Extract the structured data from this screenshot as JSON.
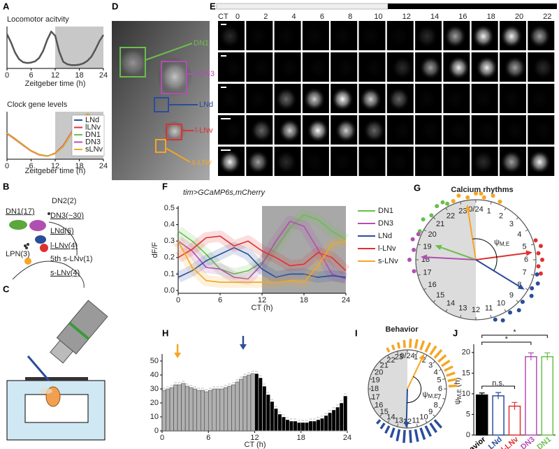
{
  "figure": {
    "panel_letters": [
      "A",
      "B",
      "C",
      "D",
      "E",
      "F",
      "G",
      "H",
      "I",
      "J"
    ],
    "B_labels": [
      "DN1(17)",
      "DN2(2)",
      "DN3(~30)",
      "LNd(6)",
      "LPN(3)",
      "l-LNv(4)",
      "5th s-LNv(1)",
      "s-LNv(4)"
    ],
    "D_labels": [
      "DN1",
      "DN3",
      "LNd",
      "l-LNv",
      "s-LNv"
    ],
    "E_ct_label": "CT",
    "E_ct": [
      0,
      2,
      4,
      6,
      8,
      10,
      12,
      14,
      16,
      18,
      20,
      22
    ]
  },
  "chart_data": [
    {
      "type": "line",
      "title": "Locomotor acitvity",
      "xlabel": "Zeitgeber time (h)",
      "x": [
        0,
        1,
        2,
        3,
        4,
        5,
        6,
        7,
        8,
        9,
        10,
        11,
        12,
        13,
        14,
        15,
        16,
        17,
        18,
        19,
        20,
        21,
        22,
        23,
        24
      ],
      "series": [
        {
          "color": "#555555",
          "values": [
            0.82,
            0.62,
            0.38,
            0.22,
            0.15,
            0.13,
            0.14,
            0.17,
            0.25,
            0.42,
            0.68,
            0.88,
            0.78,
            0.4,
            0.16,
            0.1,
            0.08,
            0.08,
            0.09,
            0.12,
            0.18,
            0.28,
            0.45,
            0.65,
            0.8
          ]
        }
      ],
      "xlim": [
        0,
        24
      ],
      "ylim": [
        0,
        1
      ],
      "xticks": [
        0,
        6,
        12,
        18,
        24
      ],
      "shade": [
        12,
        24
      ],
      "shade_color": "#c8c8c8"
    },
    {
      "type": "line",
      "title": "Clock gene levels",
      "xlabel": "Zeitgeber time (h)",
      "x": [
        0,
        2,
        4,
        6,
        8,
        10,
        12,
        14,
        16,
        18,
        20,
        22,
        24
      ],
      "series": [
        {
          "name": "LNd",
          "color": "#2a4d9b",
          "values": [
            0.55,
            0.42,
            0.28,
            0.15,
            0.06,
            0.02,
            0.08,
            0.25,
            0.55,
            0.85,
            1.0,
            0.9,
            0.6
          ]
        },
        {
          "name": "lLNv",
          "color": "#e03030",
          "values": [
            0.54,
            0.41,
            0.27,
            0.14,
            0.05,
            0.02,
            0.09,
            0.27,
            0.57,
            0.86,
            0.99,
            0.88,
            0.58
          ]
        },
        {
          "name": "DN1",
          "color": "#6abf4b",
          "values": [
            0.56,
            0.43,
            0.29,
            0.15,
            0.06,
            0.03,
            0.08,
            0.24,
            0.53,
            0.83,
            0.98,
            0.91,
            0.61
          ]
        },
        {
          "name": "DN3",
          "color": "#b04fb0",
          "values": [
            0.55,
            0.42,
            0.28,
            0.15,
            0.06,
            0.02,
            0.08,
            0.26,
            0.56,
            0.86,
            1.0,
            0.89,
            0.59
          ]
        },
        {
          "name": "sLNv",
          "color": "#f5a623",
          "values": [
            0.55,
            0.42,
            0.28,
            0.15,
            0.06,
            0.02,
            0.08,
            0.25,
            0.55,
            0.85,
            1.0,
            0.9,
            0.6
          ]
        }
      ],
      "xlim": [
        0,
        24
      ],
      "ylim": [
        -0.05,
        1.05
      ],
      "xticks": [
        0,
        6,
        12,
        18,
        24
      ],
      "shade": [
        12,
        24
      ],
      "shade_color": "#c8c8c8",
      "legend": "right"
    },
    {
      "type": "line",
      "title": "tim>GCaMP6s,mCherry",
      "xlabel": "CT (h)",
      "ylabel": "dF/F",
      "x": [
        0,
        2,
        4,
        6,
        8,
        10,
        12,
        14,
        16,
        18,
        20,
        22,
        24
      ],
      "series": [
        {
          "name": "DN1",
          "color": "#6abf4b",
          "values": [
            0.36,
            0.3,
            0.22,
            0.13,
            0.1,
            0.12,
            0.17,
            0.26,
            0.38,
            0.46,
            0.43,
            0.36,
            0.31
          ]
        },
        {
          "name": "DN3",
          "color": "#b04fb0",
          "values": [
            0.3,
            0.24,
            0.14,
            0.13,
            0.08,
            0.07,
            0.16,
            0.3,
            0.42,
            0.39,
            0.25,
            0.1,
            0.07
          ]
        },
        {
          "name": "LNd",
          "color": "#2a4d9b",
          "values": [
            0.08,
            0.12,
            0.18,
            0.22,
            0.26,
            0.22,
            0.13,
            0.08,
            0.1,
            0.1,
            0.08,
            0.09,
            0.08
          ]
        },
        {
          "name": "l-LNv",
          "color": "#e03030",
          "values": [
            0.2,
            0.25,
            0.32,
            0.33,
            0.27,
            0.3,
            0.24,
            0.2,
            0.15,
            0.16,
            0.23,
            0.2,
            0.12
          ]
        },
        {
          "name": "s-LNv",
          "color": "#f5a623",
          "values": [
            0.3,
            0.14,
            0.06,
            0.05,
            0.05,
            0.05,
            0.05,
            0.05,
            0.06,
            0.05,
            0.15,
            0.28,
            0.3
          ]
        }
      ],
      "xlim": [
        0,
        24
      ],
      "ylim": [
        -0.017,
        0.513
      ],
      "xticks": [
        0,
        6,
        12,
        18,
        24
      ],
      "yticks": [
        {
          "value": 0,
          "label": "0.0"
        },
        0.1,
        0.2,
        0.3,
        0.4,
        0.5
      ],
      "shade": [
        12,
        24
      ],
      "shade_color": "#a8a8a8",
      "legend": "outside right",
      "bands": true
    },
    {
      "type": "clock",
      "title": "Calcium rhythms",
      "xlim": [
        0,
        24
      ],
      "ylim": [
        0,
        1
      ],
      "ticks": [
        {
          "value": 0,
          "label": "0/24"
        },
        1,
        2,
        3,
        4,
        5,
        6,
        7,
        8,
        9,
        10,
        11,
        12,
        13,
        14,
        15,
        16,
        17,
        18,
        19,
        20,
        21,
        22,
        23
      ],
      "shade": [
        12,
        24
      ],
      "shade_color": "#dcdcdc",
      "dots": [
        {
          "color": "#f5a623",
          "phases": [
            22.6,
            23.0,
            23.5,
            0.0,
            0.5,
            1.0,
            1.5,
            0.3
          ]
        },
        {
          "color": "#6abf4b",
          "phases": [
            19.8,
            20.5,
            21.0,
            21.6,
            22.2,
            22.0
          ]
        },
        {
          "color": "#b04fb0",
          "phases": [
            17.3,
            18.0,
            18.6,
            19.2,
            19.6
          ]
        },
        {
          "color": "#e03030",
          "phases": [
            4.8,
            5.2,
            5.6,
            6.0,
            6.4,
            6.8
          ]
        },
        {
          "color": "#2a4d9b",
          "phases": [
            6.9,
            7.4,
            7.8,
            8.2,
            8.8,
            9.3,
            9.8,
            10.4,
            10.8
          ]
        }
      ],
      "arrows": [
        {
          "color": "#f5a623",
          "phase": 23.4,
          "length": 0.93
        },
        {
          "color": "#6abf4b",
          "phase": 19.3,
          "length": 0.72
        },
        {
          "color": "#b04fb0",
          "phase": 18.2,
          "length": 0.92
        },
        {
          "color": "#e03030",
          "phase": 5.5,
          "length": 0.95
        },
        {
          "color": "#2a4d9b",
          "phase": 8.1,
          "length": 0.95
        }
      ],
      "psi": "ψ",
      "psi_sub": "M,E"
    },
    {
      "type": "histogram",
      "xlabel": "CT (h)",
      "bins": [
        0,
        0.5,
        1,
        1.5,
        2,
        2.5,
        3,
        3.5,
        4,
        4.5,
        5,
        5.5,
        6,
        6.5,
        7,
        7.5,
        8,
        8.5,
        9,
        9.5,
        10,
        10.5,
        11,
        11.5,
        12,
        12.5,
        13,
        13.5,
        14,
        14.5,
        15,
        15.5,
        16,
        16.5,
        17,
        17.5,
        18,
        18.5,
        19,
        19.5,
        20,
        20.5,
        21,
        21.5,
        22,
        22.5,
        23,
        23.5,
        24
      ],
      "values": [
        29,
        30,
        31,
        33,
        33,
        34,
        32,
        31,
        30,
        29,
        29,
        28,
        29,
        30,
        30,
        30,
        31,
        32,
        33,
        35,
        37,
        39,
        40,
        41,
        41,
        38,
        32,
        26,
        21,
        16,
        12,
        10,
        8,
        7,
        7,
        6,
        6,
        6,
        7,
        7,
        8,
        9,
        11,
        13,
        15,
        17,
        20,
        25
      ],
      "xlim": [
        0,
        24
      ],
      "ylim": [
        0,
        55
      ],
      "xticks": [
        0,
        6,
        12,
        18,
        24
      ],
      "yticks": [
        0,
        10,
        20,
        30,
        40,
        50
      ],
      "color": "#b0b0b0",
      "dark_color": "#000000",
      "dark_from": 12,
      "arrows": [
        {
          "x": 2,
          "color": "#f5a623"
        },
        {
          "x": 10.5,
          "color": "#2a4d9b"
        }
      ]
    },
    {
      "type": "clock",
      "title": "Behavior",
      "xlim": [
        0,
        24
      ],
      "ylim": [
        0,
        1
      ],
      "ticks": [
        {
          "value": 0,
          "label": "0/24"
        },
        1,
        2,
        3,
        4,
        5,
        6,
        7,
        8,
        9,
        10,
        11,
        12,
        13,
        14,
        15,
        16,
        17,
        18,
        19,
        20,
        21,
        22,
        23
      ],
      "shade": [
        12,
        24
      ],
      "shade_color": "#dcdcdc",
      "arrows": [
        {
          "color": "#f5a623",
          "phase": 1.7,
          "length": 1
        },
        {
          "color": "#2a4d9b",
          "phase": 12.1,
          "length": 1
        }
      ],
      "psi": "ψ",
      "psi_sub": "M,E"
    },
    {
      "type": "bar",
      "ylabel": "ψ",
      "ylabel_sub": "M,E",
      "ylabel_unit": "(h)",
      "categories": [
        "Behavior",
        "LNd",
        "l-LNv",
        "DN3",
        "DN1"
      ],
      "values": [
        9.7,
        9.5,
        7.0,
        19.0,
        19.0
      ],
      "errors": [
        0.5,
        0.8,
        0.9,
        0.9,
        0.9
      ],
      "colors": [
        "#000000",
        "#2a4d9b",
        "#e03030",
        "#b04fb0",
        "#6abf4b"
      ],
      "fills": [
        "#000000",
        "#ffffff",
        "#ffffff",
        "#ffffff",
        "#ffffff"
      ],
      "ylim": [
        0,
        22
      ],
      "yticks": [
        0,
        5,
        10,
        15,
        20
      ],
      "annotations": [
        "n.s.",
        "*",
        "*"
      ]
    }
  ]
}
